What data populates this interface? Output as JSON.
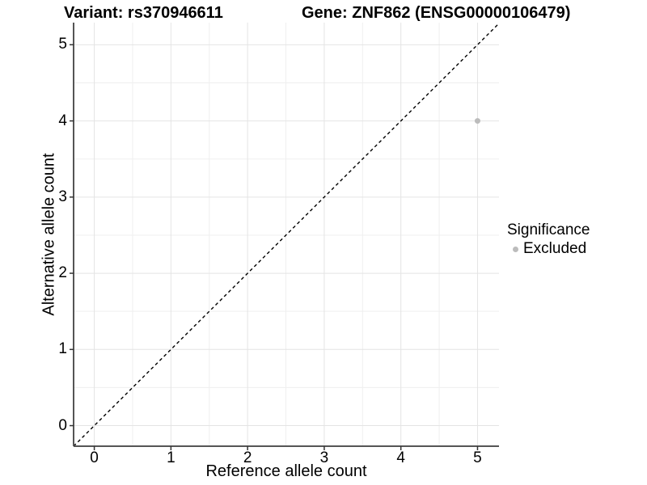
{
  "titles": {
    "variant": "Variant: rs370946611",
    "gene": "Gene: ZNF862 (ENSG00000106479)"
  },
  "chart_data": {
    "type": "scatter",
    "title_left": "Variant: rs370946611",
    "title_right": "Gene: ZNF862 (ENSG00000106479)",
    "xlabel": "Reference allele count",
    "ylabel": "Alternative allele count",
    "xlim": [
      -0.27,
      5.28
    ],
    "ylim": [
      -0.27,
      5.29
    ],
    "xticks": [
      0,
      1,
      2,
      3,
      4,
      5
    ],
    "yticks": [
      0,
      1,
      2,
      3,
      4,
      5
    ],
    "minor_step": 0.5,
    "grid": "major-and-minor",
    "points": [
      {
        "x": 5,
        "y": 4,
        "series": "Excluded"
      }
    ],
    "identity_line": {
      "style": "dashed",
      "slope": 1,
      "intercept": 0
    },
    "legend": {
      "title": "Significance",
      "position": "right",
      "items": [
        {
          "label": "Excluded",
          "color": "#bcbcbc"
        }
      ]
    }
  },
  "style": {
    "point_color": "#bcbcbc",
    "point_radius": 3.5,
    "major_grid_color": "#e4e4e4",
    "minor_grid_color": "#efefef",
    "axis_line_color": "#555555",
    "tick_mark_color": "#333333",
    "identity_line_color": "#000000",
    "background": "#ffffff"
  }
}
